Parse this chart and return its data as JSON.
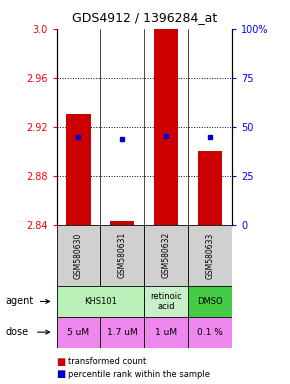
{
  "title": "GDS4912 / 1396284_at",
  "samples": [
    "GSM580630",
    "GSM580631",
    "GSM580632",
    "GSM580633"
  ],
  "bar_values": [
    2.93,
    2.843,
    3.0,
    2.9
  ],
  "bar_bottom": 2.84,
  "percentile_pcts": [
    45.0,
    43.5,
    45.5,
    44.5
  ],
  "ylim_left": [
    2.84,
    3.0
  ],
  "ylim_right": [
    0,
    100
  ],
  "yticks_left": [
    2.84,
    2.88,
    2.92,
    2.96,
    3.0
  ],
  "yticks_right": [
    0,
    25,
    50,
    75,
    100
  ],
  "bar_color": "#cc0000",
  "dot_color": "#0000cc",
  "agent_info": [
    [
      0,
      2,
      "KHS101",
      "#b8f0b8"
    ],
    [
      2,
      3,
      "retinoic\nacid",
      "#c8f0c8"
    ],
    [
      3,
      4,
      "DMSO",
      "#44cc44"
    ]
  ],
  "dose_info": [
    [
      0,
      1,
      "5 uM",
      "#ee88ee"
    ],
    [
      1,
      2,
      "1.7 uM",
      "#ee88ee"
    ],
    [
      2,
      3,
      "1 uM",
      "#ee88ee"
    ],
    [
      3,
      4,
      "0.1 %",
      "#ee88ee"
    ]
  ],
  "sample_bg": "#d0d0d0",
  "legend_red_label": "transformed count",
  "legend_blue_label": "percentile rank within the sample",
  "bar_width": 0.55
}
